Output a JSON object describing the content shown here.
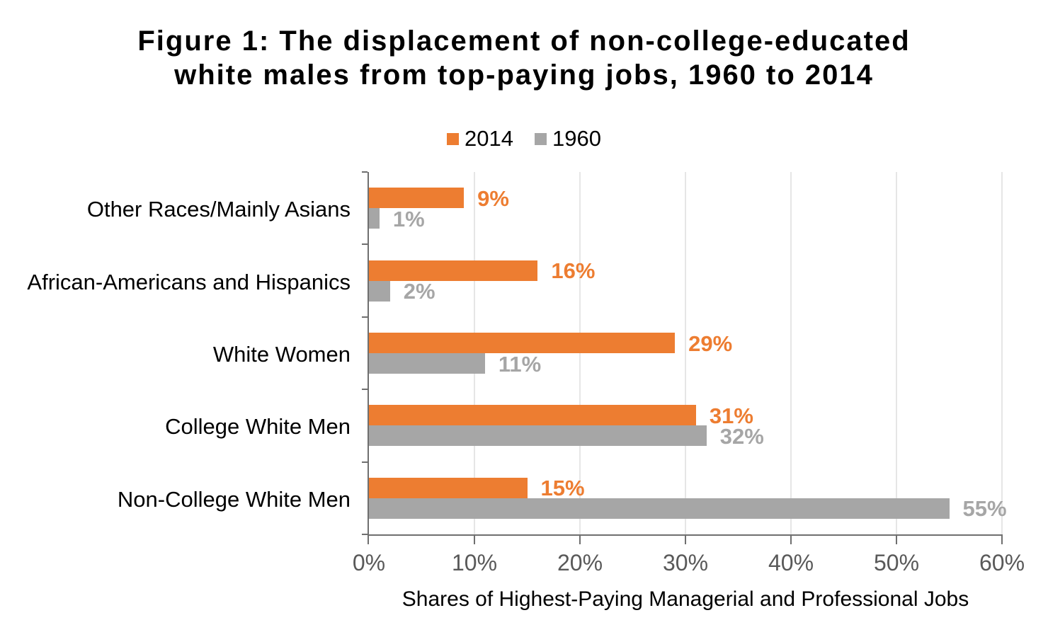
{
  "title_lines": [
    "Figure 1: The displacement of non-college-educated",
    "white males from top-paying jobs, 1960 to 2014"
  ],
  "chart_data": {
    "type": "bar",
    "orientation": "horizontal",
    "title": "Figure 1: The displacement of non-college-educated white males from top-paying jobs, 1960 to 2014",
    "categories": [
      "Other Races/Mainly Asians",
      "African-Americans and Hispanics",
      "White Women",
      "College White Men",
      "Non-College White Men"
    ],
    "series": [
      {
        "name": "2014",
        "color": "#ED7D31",
        "values": [
          9,
          16,
          29,
          31,
          15
        ],
        "labels": [
          "9%",
          "16%",
          "29%",
          "31%",
          "15%"
        ]
      },
      {
        "name": "1960",
        "color": "#A6A6A6",
        "values": [
          1,
          2,
          11,
          32,
          55
        ],
        "labels": [
          "1%",
          "2%",
          "11%",
          "32%",
          "55%"
        ]
      }
    ],
    "xlabel": "Shares of Highest-Paying Managerial and Professional Jobs",
    "xlim": [
      0,
      60
    ],
    "xticks": [
      "0%",
      "10%",
      "20%",
      "30%",
      "40%",
      "50%",
      "60%"
    ],
    "grid": true,
    "legend_position": "top",
    "colors": {
      "grid": "#e6e6e6",
      "axis": "#6f6f6f",
      "tick_label": "#595959",
      "text": "#000000"
    }
  }
}
